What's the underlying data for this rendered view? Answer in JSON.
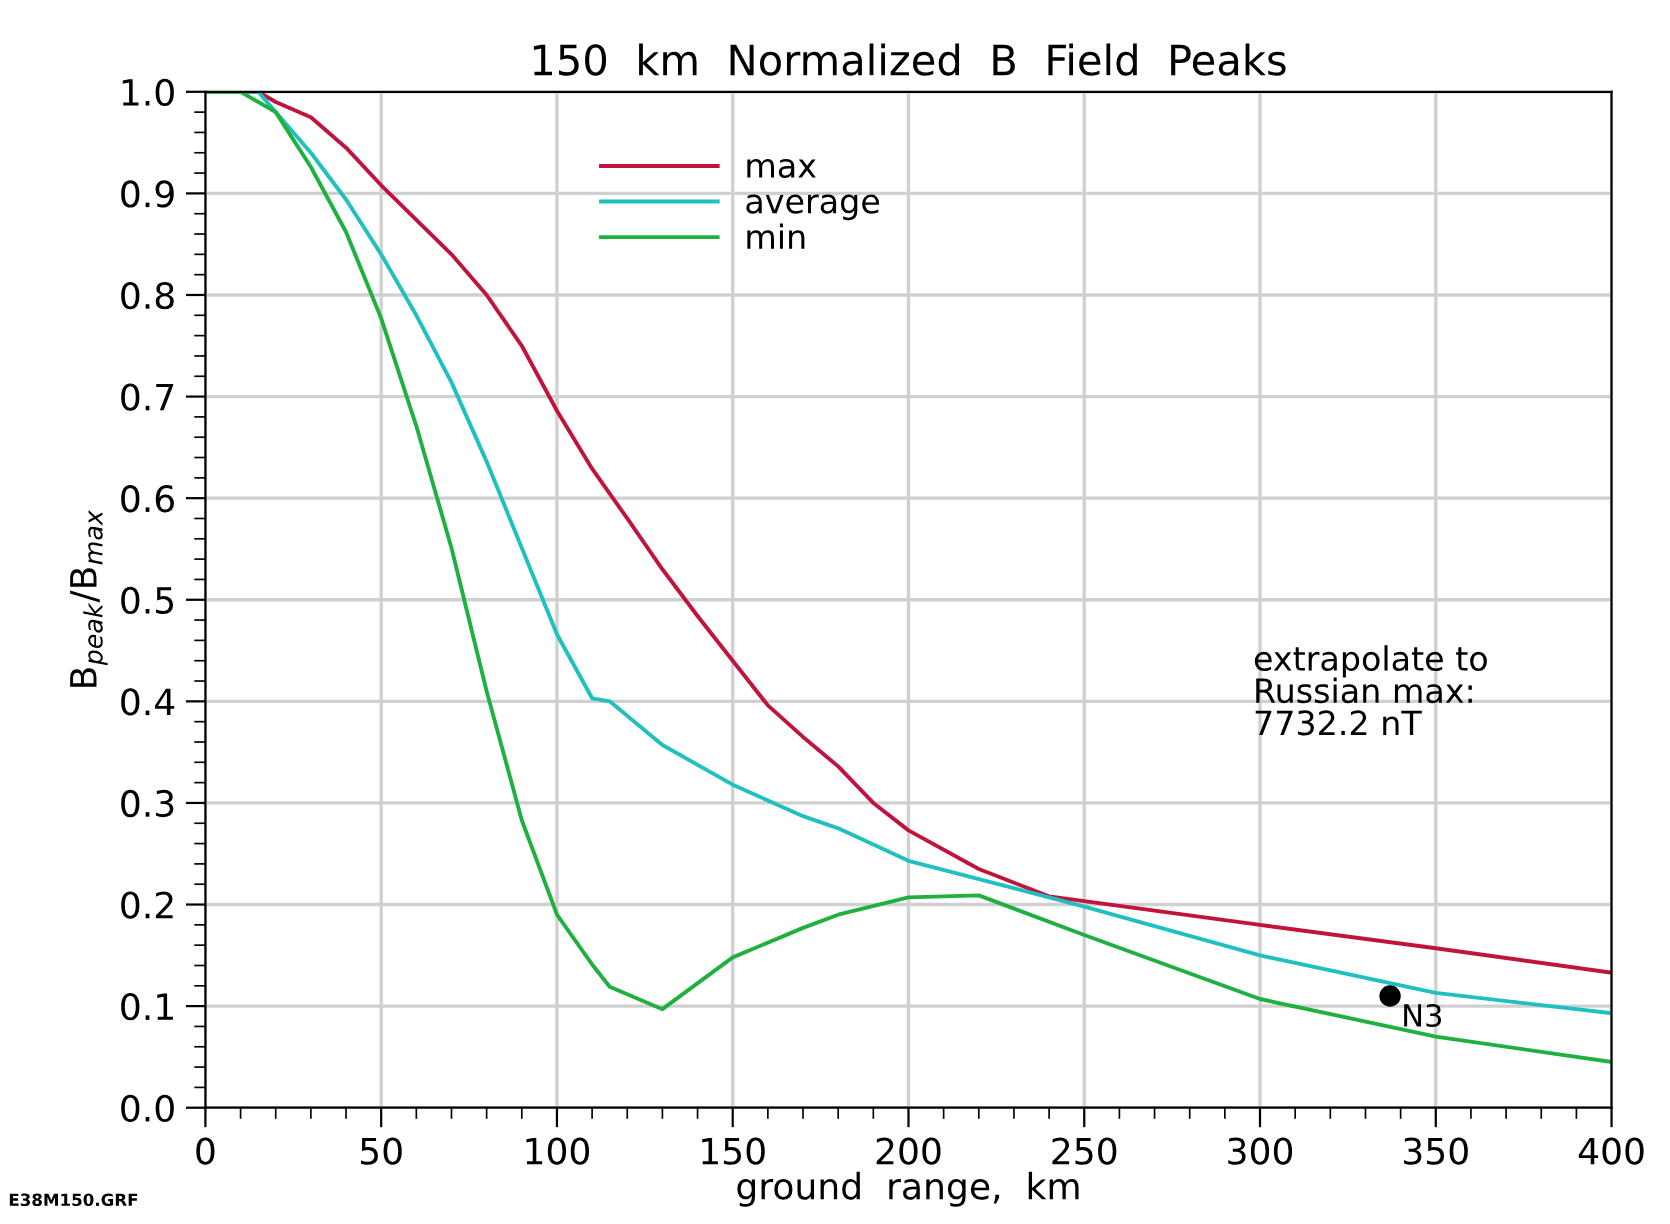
{
  "chart_data": {
    "type": "line",
    "title": "150  km  Normalized  B  Field  Peaks",
    "xlabel": "ground  range,  km",
    "ylabel": "B$_{peak}$/B$_{max}$",
    "xlim": [
      0,
      400
    ],
    "ylim": [
      0,
      1.0
    ],
    "xticks": [
      0,
      50,
      100,
      150,
      200,
      250,
      300,
      350,
      400
    ],
    "yticks": [
      {
        "value": 0,
        "label": "0.0"
      },
      0.1,
      0.2,
      0.3,
      0.4,
      0.5,
      0.6,
      0.7,
      0.8,
      0.9,
      {
        "value": 1,
        "label": "1.0"
      }
    ],
    "grid": true,
    "legend": "top",
    "marker": "none",
    "line_style": "solid",
    "series": [
      {
        "name": "max",
        "color": "#c0143c",
        "x": [
          0,
          15,
          20,
          30,
          40,
          50,
          70,
          80,
          90,
          100,
          110,
          120,
          130,
          140,
          150,
          160,
          170,
          180,
          190,
          200,
          220,
          240,
          300,
          350,
          400
        ],
        "values": [
          1.0,
          1.0,
          0.99,
          0.975,
          0.945,
          0.908,
          0.84,
          0.8,
          0.75,
          0.686,
          0.629,
          0.58,
          0.53,
          0.484,
          0.44,
          0.396,
          0.365,
          0.336,
          0.3,
          0.273,
          0.235,
          0.208,
          0.18,
          0.157,
          0.133
        ]
      },
      {
        "name": "average",
        "color": "#20c0c0",
        "x": [
          0,
          15,
          30,
          40,
          50,
          60,
          70,
          80,
          90,
          100,
          110,
          115,
          130,
          150,
          170,
          180,
          200,
          250,
          300,
          350,
          400
        ],
        "values": [
          1.0,
          1.0,
          0.94,
          0.894,
          0.84,
          0.78,
          0.714,
          0.636,
          0.551,
          0.466,
          0.403,
          0.4,
          0.357,
          0.318,
          0.287,
          0.275,
          0.243,
          0.198,
          0.15,
          0.113,
          0.093
        ]
      },
      {
        "name": "min",
        "color": "#20b040",
        "x": [
          0,
          10,
          20,
          30,
          40,
          50,
          60,
          70,
          80,
          90,
          100,
          110,
          115,
          130,
          150,
          170,
          180,
          200,
          220,
          250,
          300,
          350,
          400
        ],
        "values": [
          1.0,
          1.0,
          0.98,
          0.926,
          0.862,
          0.777,
          0.671,
          0.551,
          0.41,
          0.283,
          0.19,
          0.141,
          0.119,
          0.097,
          0.148,
          0.177,
          0.19,
          0.207,
          0.209,
          0.17,
          0.107,
          0.07,
          0.045
        ]
      },
      {
        "name": "N3",
        "type": "scatter",
        "color": "#000000",
        "marker": "circle",
        "x": [
          337
        ],
        "values": [
          0.11
        ]
      }
    ],
    "annotations": [
      "extrapolate to\nRussian max:\n7732.2 nT",
      "E38M150.GRF"
    ]
  }
}
